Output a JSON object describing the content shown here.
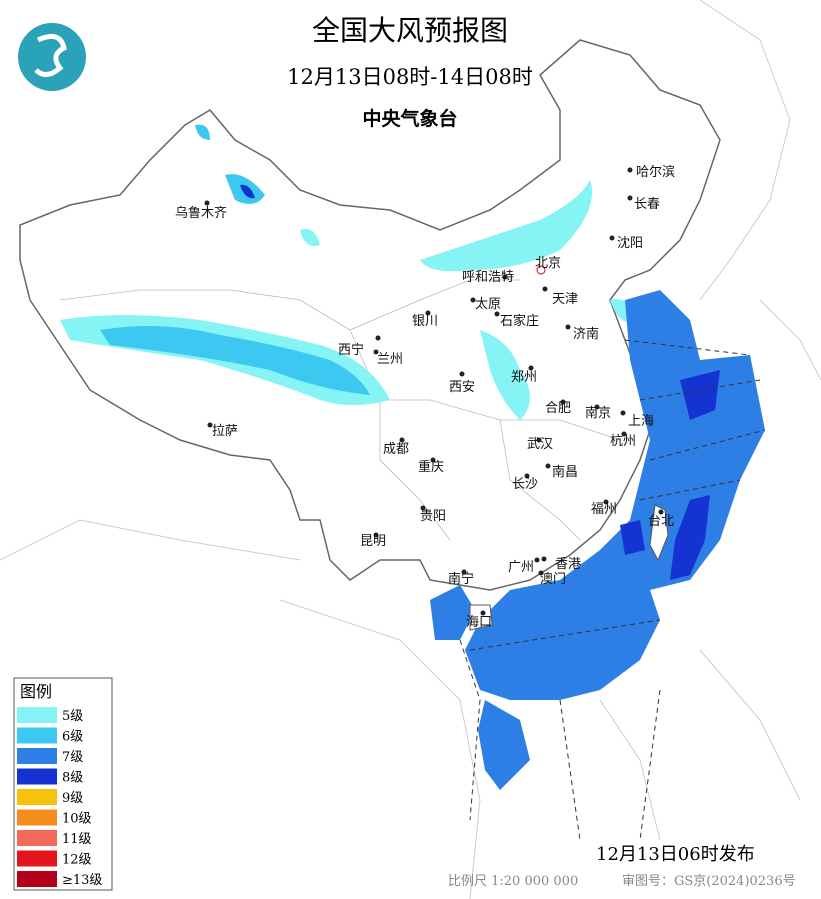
{
  "header": {
    "title": "全国大风预报图",
    "subtitle": "12月13日08时-14日08时",
    "issuer": "中央气象台"
  },
  "cities": [
    "乌鲁木齐",
    "哈尔滨",
    "长春",
    "沈阳",
    "北京",
    "呼和浩特",
    "天津",
    "太原",
    "石家庄",
    "银川",
    "济南",
    "西宁",
    "兰州",
    "郑州",
    "西安",
    "合肥",
    "南京",
    "上海",
    "拉萨",
    "成都",
    "武汉",
    "杭州",
    "重庆",
    "南昌",
    "长沙",
    "福州",
    "台北",
    "贵阳",
    "昆明",
    "南宁",
    "广州",
    "香港",
    "澳门",
    "海口"
  ],
  "legend": {
    "title": "图例",
    "items": [
      {
        "name": "5级",
        "color": "#86f3f5"
      },
      {
        "name": "6级",
        "color": "#3cc8f0"
      },
      {
        "name": "7级",
        "color": "#2d7fe6"
      },
      {
        "name": "8级",
        "color": "#1532d2"
      },
      {
        "name": "9级",
        "color": "#f6c20c"
      },
      {
        "name": "10级",
        "color": "#f58c1c"
      },
      {
        "name": "11级",
        "color": "#f36a5a"
      },
      {
        "name": "12级",
        "color": "#e6141c"
      },
      {
        "name": "≥13级",
        "color": "#b5001b"
      }
    ]
  },
  "footer": {
    "issued": "12月13日06时发布",
    "scale": "比例尺 1:20 000 000",
    "review": "审图号：GS京(2024)0236号"
  }
}
